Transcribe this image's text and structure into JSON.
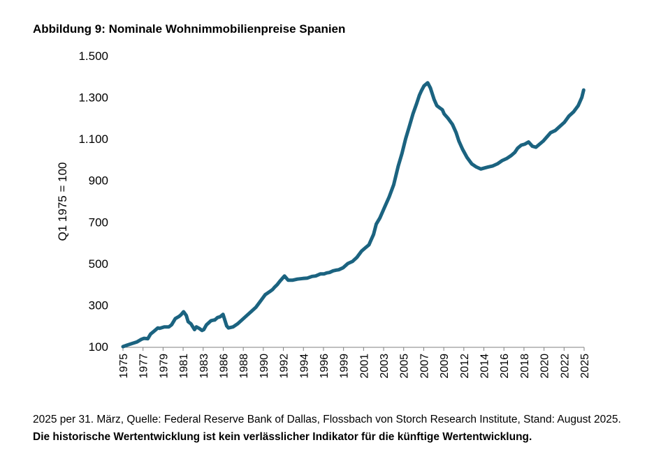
{
  "title": "Abbildung 9: Nominale Wohnimmobilienpreise Spanien",
  "footnote": {
    "source": "2025 per 31. März, Quelle: Federal Reserve Bank of Dallas, Flossbach von Storch Research Institute, Stand: August 2025.",
    "disclaimer": "Die historische Wertentwicklung ist kein verlässlicher Indikator für die künftige Wertentwicklung."
  },
  "chart_data": {
    "type": "line",
    "title": "Abbildung 9: Nominale Wohnimmobilienpreise Spanien",
    "xlabel": "",
    "ylabel": "Q1 1975 = 100",
    "ylim": [
      100,
      1500
    ],
    "xlim": [
      1975,
      2025.25
    ],
    "yticks": [
      100,
      300,
      500,
      700,
      900,
      1100,
      1300,
      1500
    ],
    "ytick_labels": [
      "100",
      "300",
      "500",
      "700",
      "900",
      "1.100",
      "1.300",
      "1.500"
    ],
    "xtick_labels": [
      "1975",
      "1977",
      "1979",
      "1981",
      "1983",
      "1986",
      "1988",
      "1990",
      "1992",
      "1994",
      "1996",
      "1999",
      "2001",
      "2003",
      "2005",
      "2007",
      "2009",
      "2012",
      "2014",
      "2016",
      "2018",
      "2020",
      "2022",
      "2025"
    ],
    "grid": false,
    "color": "#1b6380",
    "series": [
      {
        "x": [
          1975.0,
          1975.5,
          1976.0,
          1976.5,
          1977.0,
          1977.3,
          1977.7,
          1978.0,
          1978.4,
          1978.8,
          1979.0,
          1979.5,
          1980.0,
          1980.3,
          1980.7,
          1981.1,
          1981.3,
          1981.6,
          1981.9,
          1982.1,
          1982.4,
          1982.8,
          1983.0,
          1983.3,
          1983.6,
          1983.8,
          1984.1,
          1984.6,
          1984.9,
          1985.0,
          1985.3,
          1985.6,
          1985.9,
          1986.3,
          1986.5,
          1987.0,
          1987.5,
          1988.0,
          1988.5,
          1989.0,
          1989.5,
          1990.0,
          1990.5,
          1991.0,
          1991.3,
          1991.5,
          1991.8,
          1992.1,
          1992.6,
          1993.0,
          1993.5,
          1994.0,
          1994.6,
          1995.1,
          1995.6,
          1996.0,
          1996.5,
          1996.9,
          1997.2,
          1997.5,
          1997.9,
          1998.2,
          1998.5,
          1999.0,
          1999.5,
          2000.0,
          2000.5,
          2001.0,
          2001.4,
          2001.8,
          2002.0,
          2002.3,
          2002.6,
          2003.0,
          2003.5,
          2004.0,
          2004.5,
          2005.0,
          2005.4,
          2005.8,
          2006.2,
          2006.6,
          2007.0,
          2007.3,
          2007.5,
          2007.8,
          2008.2,
          2008.5,
          2008.9,
          2009.2,
          2009.5,
          2009.8,
          2010.0,
          2010.4,
          2010.9,
          2011.3,
          2011.6,
          2012.0,
          2012.5,
          2013.0,
          2013.5,
          2014.0,
          2014.4,
          2014.8,
          2015.3,
          2015.8,
          2016.3,
          2016.8,
          2017.3,
          2017.7,
          2018.0,
          2018.4,
          2018.8,
          2019.2,
          2019.6,
          2020.0,
          2020.4,
          2020.8,
          2021.2,
          2021.6,
          2022.1,
          2022.6,
          2023.1,
          2023.6,
          2024.1,
          2024.6,
          2025.0,
          2025.2
        ],
        "values": [
          100,
          108,
          115,
          122,
          135,
          140,
          138,
          160,
          175,
          190,
          188,
          195,
          195,
          205,
          235,
          245,
          252,
          268,
          250,
          220,
          210,
          182,
          195,
          188,
          178,
          182,
          205,
          225,
          228,
          228,
          240,
          244,
          255,
          200,
          190,
          195,
          210,
          230,
          250,
          270,
          290,
          320,
          350,
          365,
          375,
          385,
          398,
          415,
          440,
          420,
          420,
          425,
          428,
          430,
          438,
          440,
          450,
          450,
          455,
          457,
          465,
          468,
          470,
          480,
          500,
          510,
          530,
          560,
          575,
          590,
          610,
          640,
          690,
          720,
          770,
          820,
          880,
          970,
          1030,
          1100,
          1160,
          1220,
          1270,
          1310,
          1330,
          1355,
          1370,
          1345,
          1290,
          1260,
          1250,
          1240,
          1220,
          1200,
          1170,
          1130,
          1090,
          1050,
          1010,
          980,
          965,
          955,
          960,
          965,
          970,
          980,
          995,
          1005,
          1020,
          1035,
          1055,
          1070,
          1075,
          1085,
          1065,
          1060,
          1075,
          1090,
          1110,
          1130,
          1140,
          1160,
          1180,
          1210,
          1230,
          1260,
          1300,
          1335
        ]
      }
    ]
  }
}
